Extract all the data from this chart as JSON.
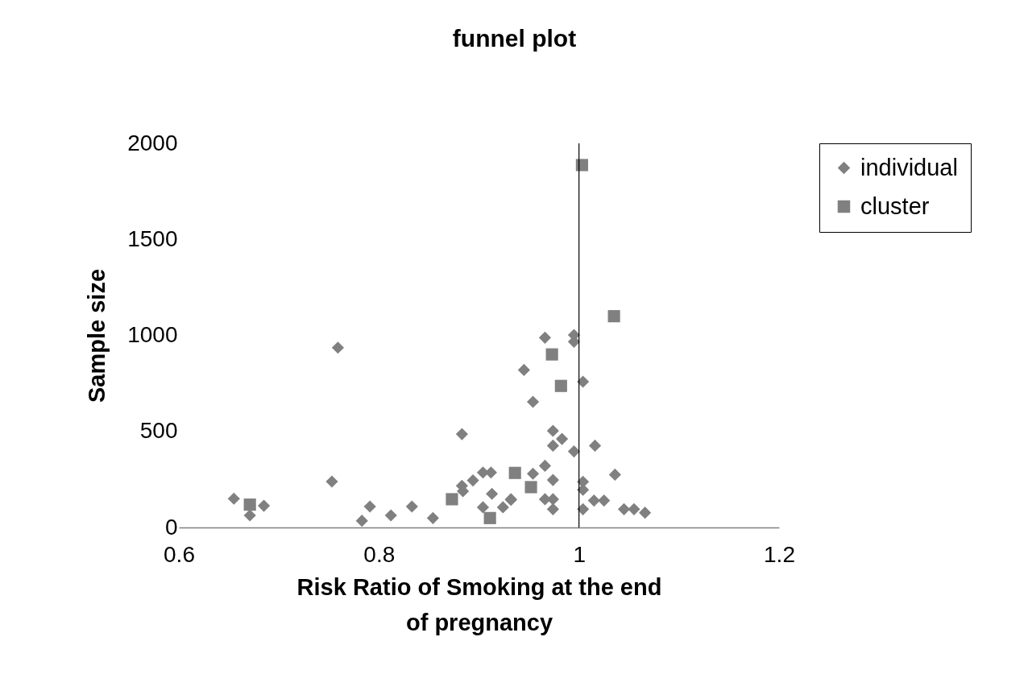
{
  "chart_data": {
    "type": "scatter",
    "title": "funnel plot",
    "xlabel": "Risk Ratio of Smoking at the end of pregnancy",
    "ylabel": "Sample size",
    "xlim": [
      0.6,
      1.2
    ],
    "xticks": [
      0.6,
      0.8,
      1,
      1.2
    ],
    "ylim": [
      0,
      2000
    ],
    "yticks": [
      0,
      500,
      1000,
      1500,
      2000
    ],
    "grid": false,
    "legend": "right",
    "ref_lines": [
      {
        "axis": "x",
        "value": 1,
        "color": "#000000"
      }
    ],
    "series": [
      {
        "name": "individual",
        "color": "#808080",
        "marker": "diamond",
        "x": [
          0.759,
          0.753,
          0.655,
          0.671,
          0.685,
          0.791,
          0.783,
          0.812,
          0.833,
          0.854,
          0.883,
          0.883,
          0.884,
          0.894,
          0.904,
          0.912,
          0.904,
          0.913,
          0.924,
          0.932,
          0.932,
          0.966,
          0.995,
          0.995,
          0.945,
          1.004,
          0.954,
          0.974,
          0.983,
          0.974,
          0.995,
          1.016,
          1.036,
          0.966,
          0.954,
          0.974,
          1.004,
          1.004,
          0.966,
          0.974,
          0.974,
          1.004,
          1.015,
          1.025,
          1.045,
          1.055,
          1.066
        ],
        "values": [
          936,
          239,
          150,
          63,
          113,
          109,
          35,
          63,
          109,
          49,
          486,
          217,
          189,
          245,
          286,
          286,
          105,
          175,
          105,
          147,
          144,
          988,
          1002,
          967,
          820,
          759,
          654,
          503,
          461,
          426,
          396,
          426,
          275,
          321,
          280,
          247,
          238,
          196,
          147,
          147,
          95,
          95,
          140,
          140,
          95,
          95,
          77
        ]
      },
      {
        "name": "cluster",
        "color": "#808080",
        "marker": "square",
        "x": [
          0.671,
          0.873,
          0.911,
          0.936,
          0.952,
          0.973,
          0.982,
          1.035,
          1.003
        ],
        "values": [
          119,
          147,
          49,
          284,
          210,
          901,
          737,
          1100,
          1887
        ]
      }
    ]
  }
}
